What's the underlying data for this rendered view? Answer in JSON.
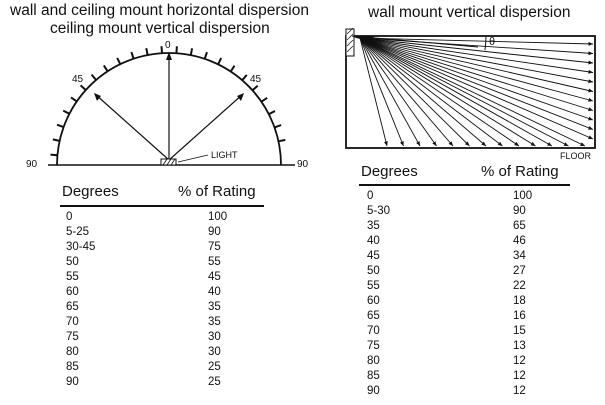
{
  "left_panel": {
    "title_line1": "wall and ceiling mount horizontal dispersion",
    "title_line2": "ceiling mount vertical dispersion",
    "diagram": {
      "label_0": "0",
      "label_45_left": "45",
      "label_45_right": "45",
      "label_90_left": "90",
      "label_90_right": "90",
      "light_label": "LIGHT"
    },
    "table": {
      "col_degrees": "Degrees",
      "col_rating": "% of Rating",
      "rows": [
        {
          "deg": "0",
          "pct": "100"
        },
        {
          "deg": "5-25",
          "pct": "90"
        },
        {
          "deg": "30-45",
          "pct": "75"
        },
        {
          "deg": "50",
          "pct": "55"
        },
        {
          "deg": "55",
          "pct": "45"
        },
        {
          "deg": "60",
          "pct": "40"
        },
        {
          "deg": "65",
          "pct": "35"
        },
        {
          "deg": "70",
          "pct": "35"
        },
        {
          "deg": "75",
          "pct": "30"
        },
        {
          "deg": "80",
          "pct": "30"
        },
        {
          "deg": "85",
          "pct": "25"
        },
        {
          "deg": "90",
          "pct": "25"
        }
      ]
    }
  },
  "right_panel": {
    "title": "wall mount vertical dispersion",
    "diagram": {
      "theta_label": "θ",
      "floor_label": "FLOOR"
    },
    "table": {
      "col_degrees": "Degrees",
      "col_rating": "% of Rating",
      "rows": [
        {
          "deg": "0",
          "pct": "100"
        },
        {
          "deg": "5-30",
          "pct": "90"
        },
        {
          "deg": "35",
          "pct": "65"
        },
        {
          "deg": "40",
          "pct": "46"
        },
        {
          "deg": "45",
          "pct": "34"
        },
        {
          "deg": "50",
          "pct": "27"
        },
        {
          "deg": "55",
          "pct": "22"
        },
        {
          "deg": "60",
          "pct": "18"
        },
        {
          "deg": "65",
          "pct": "16"
        },
        {
          "deg": "70",
          "pct": "15"
        },
        {
          "deg": "75",
          "pct": "13"
        },
        {
          "deg": "80",
          "pct": "12"
        },
        {
          "deg": "85",
          "pct": "12"
        },
        {
          "deg": "90",
          "pct": "12"
        }
      ]
    }
  }
}
